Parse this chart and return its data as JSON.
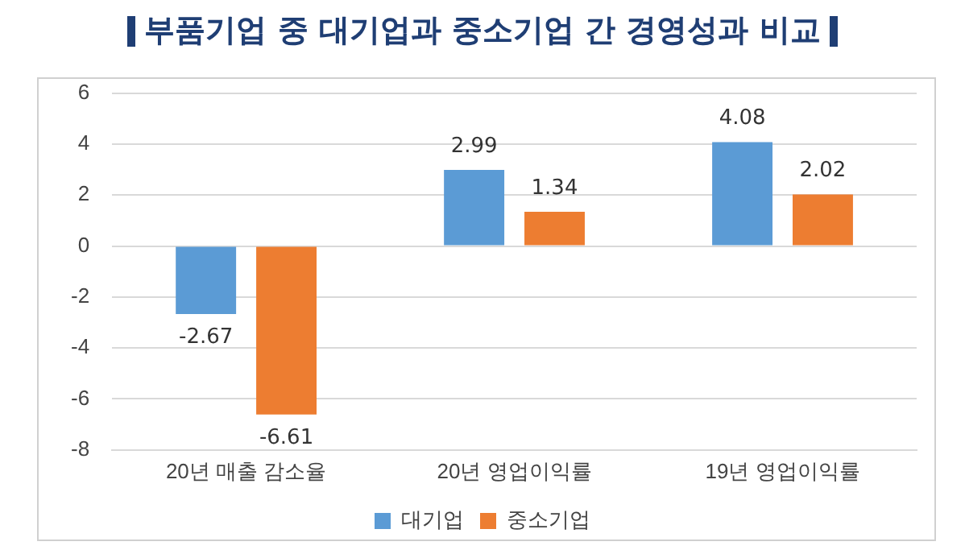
{
  "chart_data": {
    "type": "bar",
    "title": "부품기업 중 대기업과 중소기업 간 경영성과 비교",
    "categories": [
      "20년 매출 감소율",
      "20년 영업이익률",
      "19년 영업이익률"
    ],
    "series": [
      {
        "name": "대기업",
        "color": "#5b9bd5",
        "values": [
          -2.67,
          2.99,
          4.08
        ]
      },
      {
        "name": "중소기업",
        "color": "#ed7d31",
        "values": [
          -6.61,
          1.34,
          2.02
        ]
      }
    ],
    "ylim": [
      -8,
      6
    ],
    "yticks": [
      -8,
      -6,
      -4,
      -2,
      0,
      2,
      4,
      6
    ],
    "grid": "y",
    "legend": "bottom",
    "data_labels": true
  }
}
